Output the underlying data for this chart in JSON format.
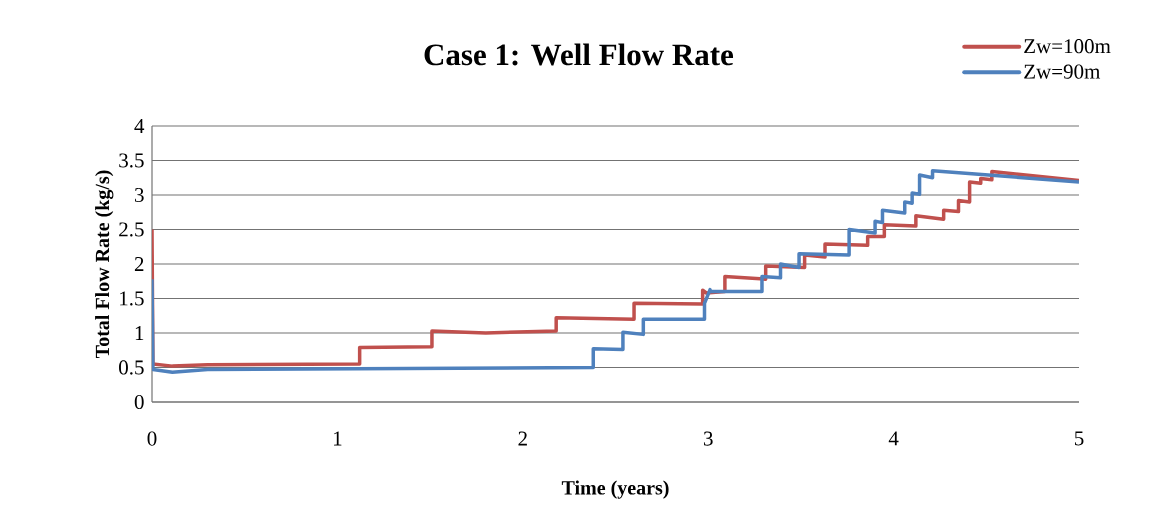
{
  "chart_data": {
    "type": "line",
    "title": "Case 1: Well Flow Rate",
    "xlabel": "Time (years)",
    "ylabel": "Total Flow Rate (kg/s)",
    "xlim": [
      0,
      5
    ],
    "xticks": [
      0,
      1,
      2,
      3,
      4,
      5
    ],
    "ylim": [
      0,
      4
    ],
    "yticks": [
      0,
      0.5,
      1,
      1.5,
      2,
      2.5,
      3,
      3.5,
      4
    ],
    "grid": "y",
    "legend": "top right",
    "marker": "none",
    "line_style": "solid",
    "series": [
      {
        "name": "Zw=100m",
        "color": "#c0504d",
        "x": [
          0,
          0.005,
          0.11,
          0.3,
          1.12,
          1.12,
          1.51,
          1.51,
          1.8,
          2.18,
          2.18,
          2.6,
          2.6,
          2.97,
          2.97,
          2.99,
          3.09,
          3.09,
          3.31,
          3.31,
          3.52,
          3.52,
          3.63,
          3.63,
          3.86,
          3.86,
          3.95,
          3.95,
          4.12,
          4.12,
          4.27,
          4.27,
          4.35,
          4.35,
          4.41,
          4.41,
          4.47,
          4.47,
          4.53,
          4.53,
          5.0
        ],
        "values": [
          2.5,
          0.55,
          0.52,
          0.54,
          0.55,
          0.79,
          0.8,
          1.03,
          1.0,
          1.03,
          1.22,
          1.2,
          1.43,
          1.42,
          1.62,
          1.58,
          1.6,
          1.82,
          1.78,
          1.97,
          1.95,
          2.13,
          2.1,
          2.29,
          2.27,
          2.4,
          2.4,
          2.57,
          2.55,
          2.7,
          2.65,
          2.78,
          2.76,
          2.92,
          2.9,
          3.19,
          3.17,
          3.24,
          3.22,
          3.34,
          3.21
        ]
      },
      {
        "name": "Zw=90m",
        "color": "#4f81bd",
        "x": [
          0,
          0.005,
          0.11,
          0.3,
          2.38,
          2.38,
          2.54,
          2.54,
          2.65,
          2.65,
          2.98,
          2.98,
          3.01,
          3.01,
          3.29,
          3.29,
          3.39,
          3.39,
          3.49,
          3.49,
          3.76,
          3.76,
          3.9,
          3.9,
          3.94,
          3.94,
          4.06,
          4.06,
          4.1,
          4.1,
          4.14,
          4.14,
          4.21,
          4.21,
          5.0
        ],
        "values": [
          1.78,
          0.47,
          0.43,
          0.47,
          0.5,
          0.77,
          0.76,
          1.01,
          0.98,
          1.2,
          1.2,
          1.43,
          1.63,
          1.6,
          1.6,
          1.82,
          1.8,
          2.0,
          1.95,
          2.15,
          2.13,
          2.5,
          2.45,
          2.62,
          2.6,
          2.78,
          2.74,
          2.9,
          2.88,
          3.03,
          3.01,
          3.29,
          3.25,
          3.35,
          3.19
        ]
      }
    ]
  }
}
